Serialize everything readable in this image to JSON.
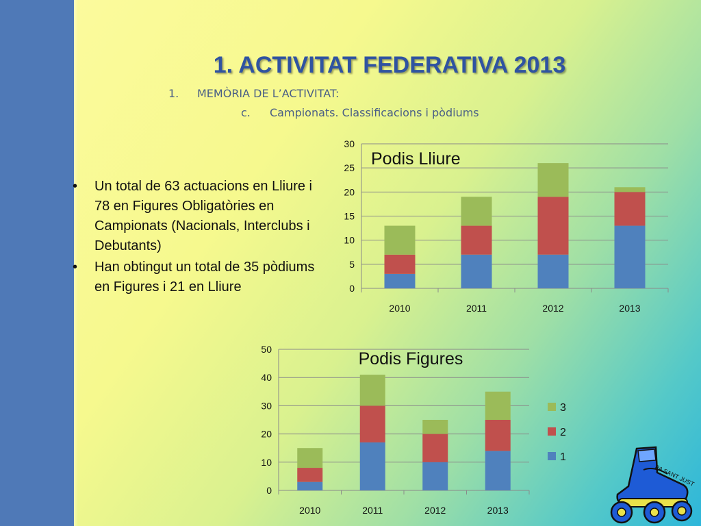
{
  "slide": {
    "title": "1. ACTIVITAT FEDERATIVA 2013",
    "subtitle_1_num": "1.",
    "subtitle_1_text": "MEMÒRIA DE L’ACTIVITAT:",
    "subtitle_2_num": "c.",
    "subtitle_2_text": "Campionats. Classificacions i pòdiums",
    "bullets": [
      "Un total de  63 actuacions en Lliure i 78 en Figures Obligatòries en Campionats (Nacionals, Interclubs i Debutants)",
      "Han obtingut un total de 35 pòdiums en  Figures i 21 en Lliure"
    ],
    "logo_text": "PA SANT JUST"
  },
  "colors": {
    "band": "#4f79b7",
    "title": "#2f53a1",
    "series_1": "#4f81bd",
    "series_2": "#c0504d",
    "series_3": "#9bbb59"
  },
  "chart_data": [
    {
      "type": "bar",
      "stacked": true,
      "title": "Podis Lliure",
      "categories": [
        "2010",
        "2011",
        "2012",
        "2013"
      ],
      "series": [
        {
          "name": "1",
          "values": [
            3,
            7,
            7,
            13
          ]
        },
        {
          "name": "2",
          "values": [
            4,
            6,
            12,
            7
          ]
        },
        {
          "name": "3",
          "values": [
            6,
            6,
            7,
            1
          ]
        }
      ],
      "ylim": [
        0,
        30
      ],
      "yticks": [
        0,
        5,
        10,
        15,
        20,
        25,
        30
      ],
      "grid": true,
      "legend": "none"
    },
    {
      "type": "bar",
      "stacked": true,
      "title": "Podis Figures",
      "categories": [
        "2010",
        "2011",
        "2012",
        "2013"
      ],
      "series": [
        {
          "name": "1",
          "values": [
            3,
            17,
            10,
            14
          ]
        },
        {
          "name": "2",
          "values": [
            5,
            13,
            10,
            11
          ]
        },
        {
          "name": "3",
          "values": [
            7,
            11,
            5,
            10
          ]
        }
      ],
      "ylim": [
        0,
        50
      ],
      "yticks": [
        0,
        10,
        20,
        30,
        40,
        50
      ],
      "grid": true,
      "legend": "right"
    }
  ]
}
